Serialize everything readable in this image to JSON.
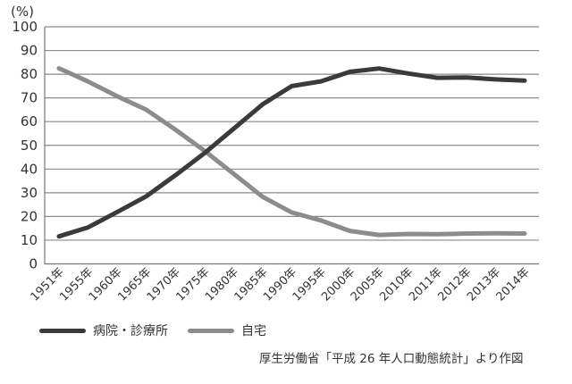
{
  "chart_data": {
    "type": "line",
    "title": "",
    "ylabel": "(%)",
    "xlabel": "",
    "ylim": [
      0,
      100
    ],
    "yticks": [
      0,
      10,
      20,
      30,
      40,
      50,
      60,
      70,
      80,
      90,
      100
    ],
    "grid": true,
    "legend_position": "bottom-left",
    "categories": [
      "1951年",
      "1955年",
      "1960年",
      "1965年",
      "1970年",
      "1975年",
      "1980年",
      "1985年",
      "1990年",
      "1995年",
      "2000年",
      "2005年",
      "2010年",
      "2011年",
      "2012年",
      "2013年",
      "2014年"
    ],
    "series": [
      {
        "name": "病院・診療所",
        "color": "#3a3a3a",
        "values": [
          11.6,
          15.4,
          21.9,
          28.5,
          37.4,
          46.7,
          57.0,
          67.3,
          75.0,
          77.0,
          81.0,
          82.4,
          80.3,
          78.5,
          78.6,
          77.8,
          77.3
        ]
      },
      {
        "name": "自宅",
        "color": "#8c8c8c",
        "values": [
          82.5,
          76.9,
          70.7,
          65.0,
          56.6,
          47.7,
          38.0,
          28.3,
          21.7,
          18.3,
          13.9,
          12.2,
          12.6,
          12.5,
          12.8,
          12.9,
          12.8
        ]
      }
    ],
    "source": "厚生労働省「平成 26 年人口動態統計」より作図"
  },
  "legend": {
    "items": [
      {
        "label": "病院・診療所",
        "color": "#3a3a3a"
      },
      {
        "label": "自宅",
        "color": "#8c8c8c"
      }
    ]
  },
  "caption": "厚生労働省「平成 26 年人口動態統計」より作図"
}
